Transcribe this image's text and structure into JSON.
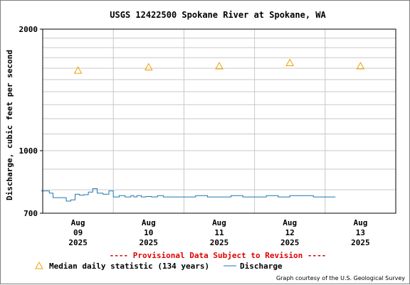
{
  "chart_data": {
    "type": "line",
    "title": "USGS 12422500 Spokane River at Spokane, WA",
    "ylabel": "Discharge, cubic feet per second",
    "xlabel": "",
    "y_scale": "log",
    "ylim": [
      700,
      2000
    ],
    "y_ticks": [
      {
        "value": 700,
        "label": "700"
      },
      {
        "value": 1000,
        "label": "1000"
      },
      {
        "value": 2000,
        "label": "2000"
      }
    ],
    "x_ticks": [
      {
        "month": "Aug",
        "day": "09",
        "year": "2025"
      },
      {
        "month": "Aug",
        "day": "10",
        "year": "2025"
      },
      {
        "month": "Aug",
        "day": "11",
        "year": "2025"
      },
      {
        "month": "Aug",
        "day": "12",
        "year": "2025"
      },
      {
        "month": "Aug",
        "day": "13",
        "year": "2025"
      }
    ],
    "grid": true,
    "provisional_note": "---- Provisional Data Subject to Revision ----",
    "credit": "Graph courtesy of the U.S. Geological Survey",
    "colors": {
      "discharge": "#1f77b4",
      "median": "#f0a000",
      "provisional": "#e00000",
      "grid": "#c8c8c8"
    },
    "series": [
      {
        "name": "Median daily statistic (134 years)",
        "marker": "triangle",
        "x": [
          "2025-08-09 12:00",
          "2025-08-10 12:00",
          "2025-08-11 12:00",
          "2025-08-12 12:00",
          "2025-08-13 12:00"
        ],
        "y": [
          1580,
          1610,
          1620,
          1650,
          1620
        ]
      },
      {
        "name": "Discharge",
        "marker": "line",
        "x": [
          "2025-08-08 23:30",
          "2025-08-09 01:00",
          "2025-08-09 02:15",
          "2025-08-09 03:30",
          "2025-08-09 05:00",
          "2025-08-09 06:30",
          "2025-08-09 08:00",
          "2025-08-09 09:30",
          "2025-08-09 11:00",
          "2025-08-09 12:30",
          "2025-08-09 14:00",
          "2025-08-09 15:30",
          "2025-08-09 17:00",
          "2025-08-09 18:30",
          "2025-08-09 20:30",
          "2025-08-09 21:30",
          "2025-08-09 22:30",
          "2025-08-10 00:00",
          "2025-08-10 02:00",
          "2025-08-10 04:00",
          "2025-08-10 06:00",
          "2025-08-10 07:00",
          "2025-08-10 08:00",
          "2025-08-10 09:30",
          "2025-08-10 11:00",
          "2025-08-10 13:00",
          "2025-08-10 15:00",
          "2025-08-10 17:00",
          "2025-08-10 20:00",
          "2025-08-11 00:00",
          "2025-08-11 04:00",
          "2025-08-11 08:00",
          "2025-08-11 12:00",
          "2025-08-11 16:00",
          "2025-08-11 20:00",
          "2025-08-12 00:00",
          "2025-08-12 04:00",
          "2025-08-12 08:00",
          "2025-08-12 12:00",
          "2025-08-12 16:00",
          "2025-08-12 20:00",
          "2025-08-13 00:00",
          "2025-08-13 03:30"
        ],
        "y": [
          795,
          795,
          785,
          765,
          765,
          765,
          750,
          755,
          780,
          776,
          778,
          790,
          805,
          785,
          780,
          780,
          795,
          768,
          774,
          768,
          774,
          768,
          774,
          768,
          770,
          768,
          774,
          768,
          768,
          768,
          774,
          768,
          768,
          774,
          768,
          768,
          774,
          768,
          774,
          774,
          768,
          768,
          768
        ]
      }
    ],
    "legend": {
      "median_label": "Median daily statistic (134 years)",
      "discharge_label": "Discharge"
    }
  }
}
